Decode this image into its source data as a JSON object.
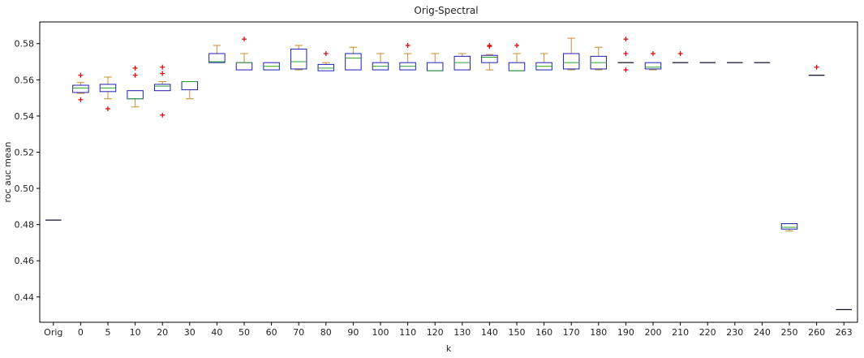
{
  "chart_data": {
    "type": "box",
    "title": "Orig-Spectral",
    "xlabel": "k",
    "ylabel": "roc auc mean",
    "ylim": [
      0.426,
      0.592
    ],
    "yticks": [
      0.44,
      0.46,
      0.48,
      0.5,
      0.52,
      0.54,
      0.56,
      0.58
    ],
    "ytick_labels": [
      "0.44",
      "0.46",
      "0.48",
      "0.50",
      "0.52",
      "0.54",
      "0.56",
      "0.58"
    ],
    "grid": false,
    "colors": {
      "box": "#1f1fb4",
      "median": "#2ca02c",
      "whisker": "#cc8c2c",
      "outlier": "#dd0000"
    },
    "categories": [
      "Orig",
      "0",
      "5",
      "10",
      "20",
      "30",
      "40",
      "50",
      "60",
      "70",
      "80",
      "90",
      "100",
      "110",
      "120",
      "130",
      "140",
      "150",
      "160",
      "170",
      "180",
      "190",
      "200",
      "210",
      "220",
      "230",
      "240",
      "250",
      "260",
      "263"
    ],
    "boxes": [
      {
        "min": 0.4825,
        "q1": 0.4825,
        "median": 0.4825,
        "q3": 0.4825,
        "max": 0.4825,
        "outliers": []
      },
      {
        "min": 0.5525,
        "q1": 0.553,
        "median": 0.5555,
        "q3": 0.557,
        "max": 0.5585,
        "outliers": [
          0.5625,
          0.549
        ]
      },
      {
        "min": 0.5495,
        "q1": 0.5535,
        "median": 0.5555,
        "q3": 0.5575,
        "max": 0.5615,
        "outliers": [
          0.544
        ]
      },
      {
        "min": 0.545,
        "q1": 0.5495,
        "median": 0.5495,
        "q3": 0.554,
        "max": 0.554,
        "outliers": [
          0.5665,
          0.5625
        ]
      },
      {
        "min": 0.554,
        "q1": 0.554,
        "median": 0.5565,
        "q3": 0.5575,
        "max": 0.559,
        "outliers": [
          0.567,
          0.5635,
          0.5405
        ]
      },
      {
        "min": 0.5495,
        "q1": 0.5545,
        "median": 0.559,
        "q3": 0.559,
        "max": 0.559,
        "outliers": []
      },
      {
        "min": 0.5695,
        "q1": 0.5695,
        "median": 0.57,
        "q3": 0.5745,
        "max": 0.579,
        "outliers": []
      },
      {
        "min": 0.5655,
        "q1": 0.5655,
        "median": 0.5695,
        "q3": 0.5695,
        "max": 0.5745,
        "outliers": [
          0.5825
        ]
      },
      {
        "min": 0.5655,
        "q1": 0.5655,
        "median": 0.5675,
        "q3": 0.5695,
        "max": 0.5695,
        "outliers": []
      },
      {
        "min": 0.5655,
        "q1": 0.566,
        "median": 0.57,
        "q3": 0.577,
        "max": 0.579,
        "outliers": []
      },
      {
        "min": 0.565,
        "q1": 0.565,
        "median": 0.5665,
        "q3": 0.5685,
        "max": 0.5695,
        "outliers": [
          0.5745
        ]
      },
      {
        "min": 0.5655,
        "q1": 0.5655,
        "median": 0.572,
        "q3": 0.5745,
        "max": 0.578,
        "outliers": []
      },
      {
        "min": 0.5655,
        "q1": 0.5655,
        "median": 0.5675,
        "q3": 0.5695,
        "max": 0.5745,
        "outliers": []
      },
      {
        "min": 0.5655,
        "q1": 0.5655,
        "median": 0.5675,
        "q3": 0.5695,
        "max": 0.5745,
        "outliers": [
          0.579
        ]
      },
      {
        "min": 0.565,
        "q1": 0.565,
        "median": 0.565,
        "q3": 0.5695,
        "max": 0.5745,
        "outliers": []
      },
      {
        "min": 0.5655,
        "q1": 0.5655,
        "median": 0.5695,
        "q3": 0.573,
        "max": 0.5745,
        "outliers": []
      },
      {
        "min": 0.5655,
        "q1": 0.5695,
        "median": 0.5725,
        "q3": 0.5735,
        "max": 0.574,
        "outliers": [
          0.579,
          0.5785
        ]
      },
      {
        "min": 0.565,
        "q1": 0.565,
        "median": 0.565,
        "q3": 0.5695,
        "max": 0.5745,
        "outliers": [
          0.579
        ]
      },
      {
        "min": 0.5655,
        "q1": 0.5655,
        "median": 0.5675,
        "q3": 0.5695,
        "max": 0.5745,
        "outliers": []
      },
      {
        "min": 0.5655,
        "q1": 0.566,
        "median": 0.5695,
        "q3": 0.5745,
        "max": 0.583,
        "outliers": []
      },
      {
        "min": 0.5655,
        "q1": 0.566,
        "median": 0.5695,
        "q3": 0.573,
        "max": 0.578,
        "outliers": []
      },
      {
        "min": 0.5695,
        "q1": 0.5695,
        "median": 0.5695,
        "q3": 0.5695,
        "max": 0.5695,
        "outliers": [
          0.5825,
          0.5745,
          0.5655
        ]
      },
      {
        "min": 0.5655,
        "q1": 0.566,
        "median": 0.567,
        "q3": 0.5695,
        "max": 0.5695,
        "outliers": [
          0.5745
        ]
      },
      {
        "min": 0.5695,
        "q1": 0.5695,
        "median": 0.5695,
        "q3": 0.5695,
        "max": 0.5695,
        "outliers": [
          0.5745
        ]
      },
      {
        "min": 0.5695,
        "q1": 0.5695,
        "median": 0.5695,
        "q3": 0.5695,
        "max": 0.5695,
        "outliers": []
      },
      {
        "min": 0.5695,
        "q1": 0.5695,
        "median": 0.5695,
        "q3": 0.5695,
        "max": 0.5695,
        "outliers": []
      },
      {
        "min": 0.5695,
        "q1": 0.5695,
        "median": 0.5695,
        "q3": 0.5695,
        "max": 0.5695,
        "outliers": []
      },
      {
        "min": 0.4765,
        "q1": 0.4775,
        "median": 0.4785,
        "q3": 0.4805,
        "max": 0.4805,
        "outliers": []
      },
      {
        "min": 0.5625,
        "q1": 0.5625,
        "median": 0.5625,
        "q3": 0.5625,
        "max": 0.5625,
        "outliers": [
          0.567
        ]
      },
      {
        "min": 0.433,
        "q1": 0.433,
        "median": 0.433,
        "q3": 0.433,
        "max": 0.433,
        "outliers": []
      }
    ]
  }
}
